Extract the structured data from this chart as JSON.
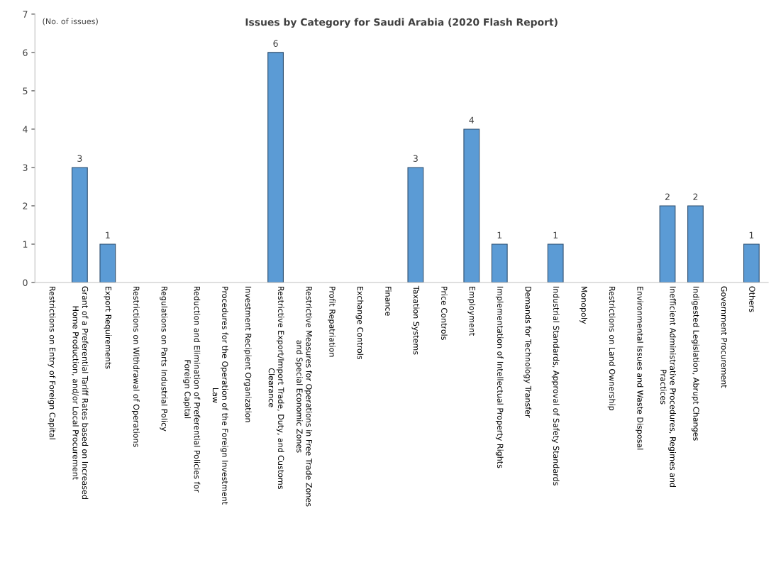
{
  "chart_data": {
    "type": "bar",
    "title": "Issues by Category for Saudi Arabia (2020 Flash Report)",
    "ylabel": "(No. of issues)",
    "categories": [
      "Restrictions on Entry of Foreign Capital",
      "Grant of a Preferential Tariff Rates based on Increased\nHome Production, and/or Local Procurement",
      "Export Requirements",
      "Restrictions on Withdrawal of Operations",
      "Regulations on Parts Industrial Policy",
      "Reduction and Elimination of Preferential Policies for\nForeign Capital",
      "Procedures for the Operation of the Foreign Investment\nLaw",
      "Investment Recipient Organization",
      "Restrictive Export/Import Trade, Duty, and Customs\nClearance",
      "Restrictive Measures for Operations in Free Trade Zones\nand Special Economic Zones",
      "Profit Repatriation",
      "Exchange Controls",
      "Finance",
      "Taxation Systems",
      "Price Controls",
      "Employment",
      "Implementation of Intellectual Property Rights",
      "Demands for Technology Transfer",
      "Industrial Standards, Approval of Safety Standards",
      "Monopoly",
      "Restrictions on Land Ownership",
      "Environmental Issues and Waste Disposal",
      "Inefficient Administrative Procedures, Regimes and\nPractices",
      "Indigested Legislation, Abrupt Changes",
      "Government Procurement",
      "Others"
    ],
    "values": [
      0,
      3,
      1,
      0,
      0,
      0,
      0,
      0,
      6,
      0,
      0,
      0,
      0,
      3,
      0,
      4,
      1,
      0,
      1,
      0,
      0,
      0,
      2,
      2,
      0,
      1
    ],
    "value_labels": [
      null,
      "3",
      "1",
      null,
      null,
      null,
      null,
      null,
      "6",
      null,
      null,
      null,
      null,
      "3",
      null,
      "4",
      "1",
      null,
      "1",
      null,
      null,
      null,
      "2",
      "2",
      null,
      "1"
    ],
    "color": "#5b9bd5",
    "ylim": [
      0,
      7
    ],
    "yticks": [
      0,
      1,
      2,
      3,
      4,
      5,
      6,
      7
    ],
    "grid": false
  }
}
